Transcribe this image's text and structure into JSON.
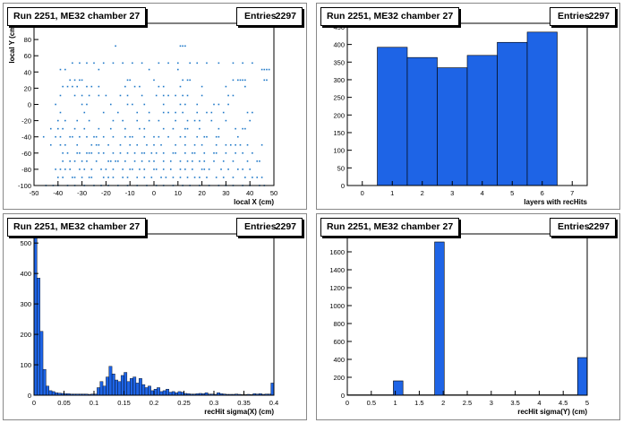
{
  "panels": [
    {
      "title": "Run 2251, ME32 chamber 27",
      "stats_label": "Entries",
      "stats_value": "2297"
    },
    {
      "title": "Run 2251, ME32 chamber 27",
      "stats_label": "Entries",
      "stats_value": "2297"
    },
    {
      "title": "Run 2251, ME32 chamber 27",
      "stats_label": "Entries",
      "stats_value": "2297"
    },
    {
      "title": "Run 2251, ME32 chamber 27",
      "stats_label": "Entries",
      "stats_value": "2297"
    }
  ],
  "colors": {
    "fill": "#1e64e6",
    "marker": "#1e78c8",
    "axis": "#000000"
  },
  "chart_data": [
    {
      "type": "scatter",
      "xlabel": "local X (cm)",
      "ylabel": "local Y (cm)",
      "xlim": [
        -50,
        50
      ],
      "ylim": [
        -100,
        100
      ],
      "xticks": [
        -50,
        -40,
        -30,
        -20,
        -10,
        0,
        10,
        20,
        30,
        40,
        50
      ],
      "yticks": [
        -100,
        -80,
        -60,
        -40,
        -20,
        0,
        20,
        40,
        60,
        80,
        100
      ],
      "rows": [
        {
          "y": 72,
          "xs": [
            -16,
            11,
            12,
            13
          ]
        },
        {
          "y": 51,
          "xs": [
            -34,
            -31,
            -28,
            -25,
            -21,
            -17,
            -13,
            -9,
            -5,
            2,
            6,
            10,
            15,
            18,
            22,
            27,
            33,
            37,
            41
          ]
        },
        {
          "y": 43,
          "xs": [
            -39,
            -37,
            -23,
            -2,
            10,
            45,
            46,
            47,
            48
          ]
        },
        {
          "y": 30,
          "xs": [
            -35,
            -33,
            -31,
            -30,
            -11,
            -10,
            0,
            12,
            14,
            15,
            33,
            35,
            36,
            37,
            38,
            46,
            47
          ]
        },
        {
          "y": 22,
          "xs": [
            -38,
            -36,
            -34,
            -32,
            -28,
            -26,
            -23,
            -12,
            -8,
            -6,
            2,
            4,
            11,
            20,
            30,
            38
          ]
        },
        {
          "y": 11,
          "xs": [
            -39,
            -33,
            -30,
            -27,
            -23,
            -20,
            -14,
            -11,
            -5,
            1,
            4,
            6,
            9,
            12,
            14,
            20,
            31,
            33
          ]
        },
        {
          "y": 0,
          "xs": [
            -41,
            -30,
            -28,
            -18,
            -11,
            -9,
            -4,
            4,
            11,
            13,
            18,
            25,
            27,
            31
          ]
        },
        {
          "y": -10,
          "xs": [
            -39,
            -29,
            -21,
            -15,
            -7,
            -2,
            4,
            6,
            9,
            12,
            18,
            22,
            24,
            29,
            39,
            41
          ]
        },
        {
          "y": -20,
          "xs": [
            -40,
            -37,
            -32,
            -27,
            -17,
            -13,
            -7,
            -2,
            2,
            9,
            14,
            17,
            19,
            24,
            30,
            40
          ]
        },
        {
          "y": -30,
          "xs": [
            -43,
            -40,
            -38,
            -33,
            -29,
            -23,
            -18,
            -12,
            -6,
            -4,
            4,
            8,
            13,
            14,
            19,
            27,
            34,
            37,
            38
          ]
        },
        {
          "y": -40,
          "xs": [
            -46,
            -41,
            -39,
            -35,
            -34,
            -31,
            -28,
            -25,
            -24,
            -21,
            -17,
            -12,
            -10,
            -9,
            -4,
            0,
            2,
            6,
            11,
            13,
            18,
            21,
            22,
            26,
            27,
            35
          ]
        },
        {
          "y": -50,
          "xs": [
            -43,
            -39,
            -37,
            -32,
            -26,
            -24,
            -23,
            -19,
            -14,
            -10,
            -7,
            -3,
            0,
            3,
            9,
            13,
            17,
            20,
            26,
            30,
            32,
            34,
            36,
            39,
            45
          ]
        },
        {
          "y": -60,
          "xs": [
            -38,
            -36,
            -32,
            -31,
            -28,
            -27,
            -26,
            -23,
            -21,
            -17,
            -14,
            -11,
            -8,
            -5,
            -4,
            -1,
            1,
            4,
            8,
            9,
            13,
            16,
            17,
            21,
            25,
            26,
            30,
            34,
            37,
            41
          ]
        },
        {
          "y": -70,
          "xs": [
            -38,
            -35,
            -33,
            -30,
            -28,
            -24,
            -19,
            -18,
            -16,
            -15,
            -12,
            -8,
            -5,
            -2,
            0,
            4,
            7,
            11,
            14,
            16,
            19,
            21,
            25,
            29,
            33,
            39,
            43,
            44
          ]
        },
        {
          "y": -80,
          "xs": [
            -41,
            -39,
            -37,
            -35,
            -31,
            -29,
            -26,
            -22,
            -20,
            -17,
            -13,
            -10,
            -9,
            -6,
            -4,
            0,
            1,
            4,
            7,
            11,
            13,
            16,
            20,
            21,
            23,
            28,
            31,
            35,
            37,
            40
          ]
        },
        {
          "y": -90,
          "xs": [
            -40,
            -38,
            -34,
            -33,
            -30,
            -27,
            -26,
            -21,
            -19,
            -17,
            -13,
            -11,
            -7,
            -4,
            -1,
            3,
            5,
            8,
            11,
            14,
            17,
            19,
            22,
            26,
            29,
            33,
            38,
            41,
            43,
            45
          ]
        },
        {
          "y": -100,
          "xs": [
            -45,
            -42,
            -40,
            -36,
            -33,
            -29,
            -25,
            -22,
            -19,
            -15,
            -11,
            -7,
            -3,
            1,
            4,
            8,
            12,
            15,
            19,
            23,
            27,
            30,
            33,
            37,
            40,
            44,
            46
          ]
        }
      ]
    },
    {
      "type": "bar",
      "xlabel": "layers with recHits",
      "ylabel": "",
      "xlim": [
        -0.5,
        7.5
      ],
      "ylim": [
        0,
        460
      ],
      "xticks": [
        0,
        1,
        2,
        3,
        4,
        5,
        6,
        7
      ],
      "yticks": [
        0,
        50,
        100,
        150,
        200,
        250,
        300,
        350,
        400,
        450
      ],
      "categories": [
        0,
        1,
        2,
        3,
        4,
        5,
        6,
        7
      ],
      "values": [
        0,
        392,
        363,
        334,
        369,
        406,
        435,
        0
      ]
    },
    {
      "type": "bar",
      "xlabel": "recHit sigma(X) (cm)",
      "ylabel": "",
      "xlim": [
        0,
        0.4
      ],
      "ylim": [
        0,
        530
      ],
      "xticks": [
        0,
        0.05,
        0.1,
        0.15,
        0.2,
        0.25,
        0.3,
        0.35,
        0.4
      ],
      "yticks": [
        0,
        100,
        200,
        300,
        400,
        500
      ],
      "bin_width": 0.005,
      "values": [
        520,
        385,
        210,
        85,
        30,
        15,
        12,
        8,
        7,
        6,
        5,
        5,
        4,
        4,
        4,
        4,
        4,
        4,
        3,
        4,
        4,
        25,
        45,
        30,
        60,
        95,
        70,
        50,
        45,
        65,
        75,
        45,
        55,
        60,
        40,
        55,
        35,
        25,
        30,
        15,
        20,
        25,
        12,
        15,
        20,
        10,
        12,
        8,
        12,
        10,
        6,
        5,
        4,
        4,
        5,
        6,
        5,
        8,
        4,
        4,
        3,
        8,
        5,
        4,
        3,
        3,
        3,
        4,
        3,
        2,
        2,
        3,
        2,
        5,
        4,
        5,
        3,
        4,
        4,
        40
      ]
    },
    {
      "type": "bar",
      "xlabel": "recHit sigma(Y) (cm)",
      "ylabel": "",
      "xlim": [
        0,
        5
      ],
      "ylim": [
        0,
        1800
      ],
      "xticks": [
        0,
        0.5,
        1,
        1.5,
        2,
        2.5,
        3,
        3.5,
        4,
        4.5,
        5
      ],
      "yticks": [
        0,
        200,
        400,
        600,
        800,
        1000,
        1200,
        1400,
        1600
      ],
      "bins": [
        {
          "x0": 0.0,
          "x1": 0.96,
          "value": 5
        },
        {
          "x0": 0.96,
          "x1": 1.16,
          "value": 160
        },
        {
          "x0": 1.16,
          "x1": 1.82,
          "value": 5
        },
        {
          "x0": 1.82,
          "x1": 2.02,
          "value": 1710
        },
        {
          "x0": 2.02,
          "x1": 4.8,
          "value": 5
        },
        {
          "x0": 4.8,
          "x1": 5.0,
          "value": 420
        }
      ]
    }
  ]
}
